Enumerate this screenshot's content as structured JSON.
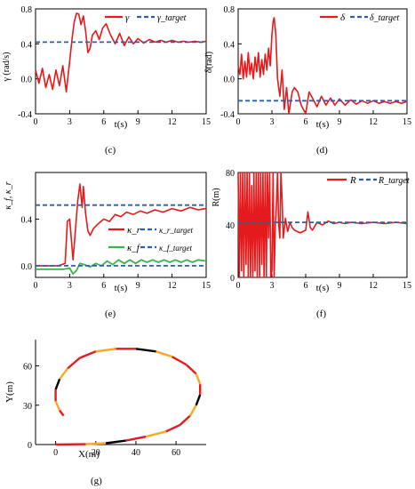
{
  "colors": {
    "actual": "#e41a1c",
    "target": "#2f5da8",
    "green": "#3cb44b",
    "black": "#000000"
  },
  "chart_data": [
    {
      "id": "c",
      "type": "line",
      "caption": "(c)",
      "xlabel": "t(s)",
      "ylabel": "γ (rad/s)",
      "xlim": [
        0,
        15
      ],
      "ylim": [
        -0.4,
        0.8
      ],
      "xticks": [
        "0",
        "3",
        "6",
        "9",
        "12",
        "15"
      ],
      "yticks": [
        "-0.4",
        "0.0",
        "0.4",
        "0.8"
      ],
      "legend": {
        "position": "top-right",
        "entries": [
          "γ",
          "γ_target"
        ]
      },
      "series": [
        {
          "name": "γ",
          "role": "actual",
          "x": [
            0,
            0.3,
            0.6,
            0.9,
            1.2,
            1.5,
            1.8,
            2.1,
            2.4,
            2.7,
            3.0,
            3.2,
            3.4,
            3.6,
            3.8,
            4.0,
            4.2,
            4.4,
            4.6,
            4.8,
            5.0,
            5.3,
            5.6,
            5.9,
            6.2,
            6.6,
            7.0,
            7.4,
            7.8,
            8.2,
            8.6,
            9.0,
            9.5,
            10.0,
            10.5,
            11.0,
            11.5,
            12.0,
            12.5,
            13.0,
            13.5,
            14.0,
            14.5,
            15.0
          ],
          "y": [
            0.1,
            -0.05,
            0.12,
            -0.1,
            0.05,
            -0.12,
            0.1,
            -0.08,
            0.15,
            -0.15,
            0.2,
            0.45,
            0.65,
            0.75,
            0.74,
            0.62,
            0.72,
            0.55,
            0.3,
            0.35,
            0.5,
            0.55,
            0.45,
            0.58,
            0.63,
            0.5,
            0.4,
            0.52,
            0.38,
            0.48,
            0.4,
            0.46,
            0.41,
            0.45,
            0.42,
            0.44,
            0.42,
            0.44,
            0.42,
            0.43,
            0.42,
            0.43,
            0.42,
            0.43
          ]
        },
        {
          "name": "γ_target",
          "role": "target",
          "x": [
            0,
            15
          ],
          "y": [
            0.42,
            0.42
          ]
        }
      ]
    },
    {
      "id": "d",
      "type": "line",
      "caption": "(d)",
      "xlabel": "t(s)",
      "ylabel": "δ(rad)",
      "xlim": [
        0,
        15
      ],
      "ylim": [
        -0.4,
        0.8
      ],
      "xticks": [
        "0",
        "3",
        "6",
        "9",
        "12",
        "15"
      ],
      "yticks": [
        "-0.4",
        "0.0",
        "0.4",
        "0.8"
      ],
      "legend": {
        "position": "top-right",
        "entries": [
          "δ",
          "δ_target"
        ]
      },
      "series": [
        {
          "name": "δ",
          "role": "actual",
          "x": [
            0,
            0.15,
            0.3,
            0.45,
            0.6,
            0.75,
            0.9,
            1.05,
            1.2,
            1.35,
            1.5,
            1.65,
            1.8,
            1.95,
            2.1,
            2.25,
            2.4,
            2.55,
            2.7,
            2.85,
            3.0,
            3.1,
            3.2,
            3.35,
            3.5,
            3.7,
            3.9,
            4.1,
            4.3,
            4.5,
            4.8,
            5.0,
            5.3,
            5.6,
            6.0,
            6.3,
            6.6,
            7.0,
            7.4,
            7.8,
            8.2,
            8.6,
            9.0,
            9.5,
            10.0,
            10.5,
            11.0,
            11.5,
            12.0,
            12.5,
            13.0,
            13.5,
            14.0,
            14.5,
            15.0
          ],
          "y": [
            0.15,
            0.05,
            0.28,
            0.0,
            0.2,
            0.02,
            0.3,
            0.05,
            0.18,
            0.0,
            0.25,
            0.08,
            0.3,
            0.02,
            0.22,
            0.05,
            0.28,
            0.1,
            0.35,
            0.15,
            0.5,
            0.65,
            0.7,
            0.5,
            0.0,
            -0.2,
            0.1,
            -0.35,
            -0.1,
            -0.4,
            -0.15,
            -0.1,
            -0.15,
            -0.3,
            -0.4,
            -0.15,
            -0.22,
            -0.32,
            -0.2,
            -0.3,
            -0.22,
            -0.3,
            -0.23,
            -0.3,
            -0.24,
            -0.29,
            -0.25,
            -0.28,
            -0.25,
            -0.28,
            -0.26,
            -0.28,
            -0.26,
            -0.28,
            -0.26
          ]
        },
        {
          "name": "δ_target",
          "role": "target",
          "x": [
            0,
            15
          ],
          "y": [
            -0.25,
            -0.25
          ]
        }
      ]
    },
    {
      "id": "e",
      "type": "line",
      "caption": "(e)",
      "xlabel": "t(s)",
      "ylabel": "κ_f, κ_r",
      "xlim": [
        0,
        15
      ],
      "ylim": [
        -0.1,
        0.8
      ],
      "xticks": [
        "0",
        "3",
        "6",
        "9",
        "12",
        "15"
      ],
      "yticks": [
        "0.0",
        "0.4"
      ],
      "legend": {
        "position": "right",
        "entries": [
          "κ_r",
          "κ_r_target",
          "κ_f",
          "κ_f_target"
        ]
      },
      "series": [
        {
          "name": "κ_r",
          "role": "actual",
          "x": [
            0,
            2.0,
            2.6,
            2.8,
            3.0,
            3.3,
            3.5,
            3.7,
            3.9,
            4.1,
            4.2,
            4.4,
            4.6,
            4.8,
            5.1,
            5.5,
            6.0,
            6.5,
            7.0,
            7.5,
            8.0,
            8.6,
            9.2,
            9.8,
            10.5,
            11.2,
            12.0,
            12.8,
            13.6,
            14.3,
            15.0
          ],
          "y": [
            0.0,
            0.0,
            0.02,
            0.38,
            0.4,
            0.05,
            0.3,
            0.55,
            0.7,
            0.5,
            0.68,
            0.45,
            0.3,
            0.26,
            0.32,
            0.36,
            0.4,
            0.38,
            0.44,
            0.42,
            0.46,
            0.44,
            0.47,
            0.45,
            0.48,
            0.46,
            0.49,
            0.47,
            0.5,
            0.48,
            0.49
          ]
        },
        {
          "name": "κ_r_target",
          "role": "target",
          "x": [
            0,
            15
          ],
          "y": [
            0.52,
            0.52
          ]
        },
        {
          "name": "κ_f",
          "role": "green",
          "x": [
            0,
            2.5,
            3.0,
            3.3,
            3.6,
            3.9,
            4.3,
            4.8,
            5.3,
            5.8,
            6.3,
            6.8,
            7.3,
            7.8,
            8.3,
            8.8,
            9.3,
            9.8,
            10.3,
            10.8,
            11.3,
            11.8,
            12.3,
            12.8,
            13.3,
            13.8,
            14.3,
            15.0
          ],
          "y": [
            -0.03,
            -0.03,
            -0.02,
            -0.07,
            -0.04,
            0.02,
            0.01,
            -0.01,
            0.02,
            0.0,
            0.04,
            0.01,
            0.05,
            0.02,
            0.05,
            0.02,
            0.05,
            0.03,
            0.05,
            0.03,
            0.05,
            0.03,
            0.05,
            0.03,
            0.05,
            0.03,
            0.05,
            0.04
          ]
        },
        {
          "name": "κ_f_target",
          "role": "target",
          "x": [
            0,
            15
          ],
          "y": [
            0.0,
            0.0
          ]
        }
      ]
    },
    {
      "id": "f",
      "type": "line",
      "caption": "(f)",
      "xlabel": "t(s)",
      "ylabel": "R(m)",
      "xlim": [
        0,
        15
      ],
      "ylim": [
        0,
        80
      ],
      "xticks": [
        "0",
        "3",
        "6",
        "9",
        "12",
        "15"
      ],
      "yticks": [
        "0",
        "40",
        "80"
      ],
      "legend": {
        "position": "top-right",
        "entries": [
          "R",
          "R_target"
        ]
      },
      "series": [
        {
          "name": "R",
          "role": "actual",
          "x": [
            0,
            0.1,
            0.2,
            0.3,
            0.4,
            0.5,
            0.6,
            0.7,
            0.8,
            0.9,
            1.0,
            1.1,
            1.2,
            1.3,
            1.4,
            1.5,
            1.6,
            1.7,
            1.8,
            1.9,
            2.0,
            2.1,
            2.2,
            2.3,
            2.4,
            2.5,
            2.6,
            2.7,
            2.8,
            2.9,
            3.0,
            3.1,
            3.2,
            3.3,
            3.4,
            3.5,
            3.6,
            3.7,
            3.8,
            3.9,
            4.0,
            4.2,
            4.4,
            4.6,
            4.8,
            5.0,
            5.5,
            6.0,
            6.2,
            6.4,
            6.6,
            7.0,
            7.5,
            8.0,
            8.5,
            9.0,
            9.5,
            10.0,
            11.0,
            12.0,
            13.0,
            14.0,
            15.0
          ],
          "y": [
            80,
            0,
            80,
            5,
            80,
            0,
            80,
            10,
            80,
            0,
            80,
            0,
            70,
            0,
            80,
            5,
            80,
            0,
            80,
            0,
            80,
            10,
            80,
            0,
            80,
            0,
            80,
            30,
            80,
            0,
            5,
            80,
            0,
            40,
            55,
            80,
            40,
            30,
            80,
            60,
            30,
            45,
            35,
            42,
            38,
            36,
            34,
            36,
            50,
            38,
            36,
            42,
            40,
            43,
            41,
            42,
            41,
            42,
            41,
            42,
            41,
            42,
            41
          ]
        },
        {
          "name": "R_target",
          "role": "target",
          "x": [
            0,
            15
          ],
          "y": [
            42,
            42
          ]
        }
      ]
    },
    {
      "id": "g",
      "type": "line",
      "caption": "(g)",
      "xlabel": "X(m)",
      "ylabel": "Y(m)",
      "xlim": [
        -10,
        75
      ],
      "ylim": [
        0,
        80
      ],
      "xticks": [
        "0",
        "20",
        "40",
        "60"
      ],
      "yticks": [
        "0",
        "30",
        "60"
      ],
      "series": [
        {
          "name": "",
          "role": "trajectory",
          "x": [
            0,
            15,
            25,
            35,
            45,
            55,
            62,
            67,
            70,
            72,
            72,
            70,
            65,
            58,
            50,
            40,
            30,
            20,
            12,
            6,
            2,
            0,
            0,
            2,
            4
          ],
          "y": [
            0,
            0.3,
            1,
            3,
            6,
            10,
            15,
            22,
            30,
            38,
            46,
            54,
            61,
            67,
            71,
            73,
            73,
            71,
            66,
            58,
            50,
            42,
            33,
            26,
            22
          ]
        }
      ]
    }
  ]
}
